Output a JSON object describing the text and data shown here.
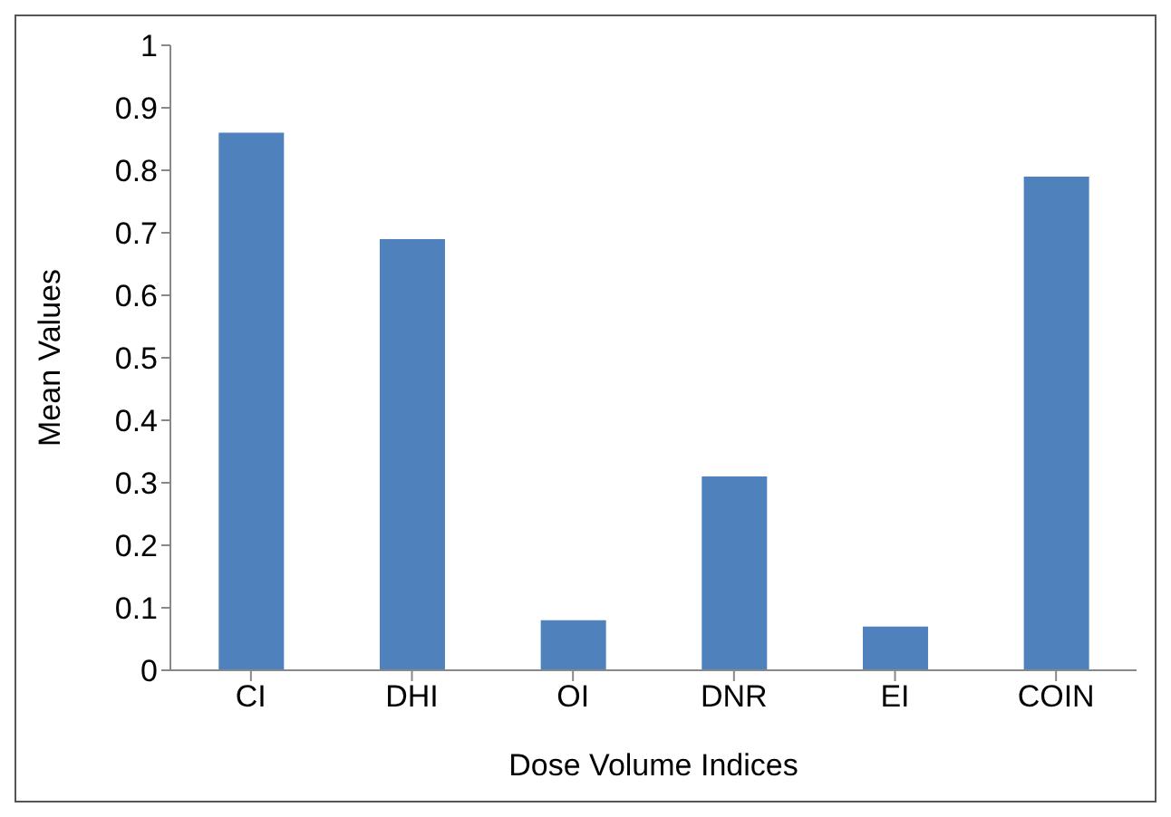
{
  "chart_data": {
    "type": "bar",
    "xlabel": "Dose Volume Indices",
    "ylabel": "Mean Values",
    "categories": [
      "CI",
      "DHI",
      "OI",
      "DNR",
      "EI",
      "COIN"
    ],
    "values": [
      0.86,
      0.69,
      0.08,
      0.31,
      0.07,
      0.79
    ],
    "color": "#4f81bd",
    "ylim": [
      0,
      1
    ],
    "yticks": [
      0,
      0.1,
      0.2,
      0.3,
      0.4,
      0.5,
      0.6,
      0.7,
      0.8,
      0.9,
      1
    ],
    "grid": false
  }
}
